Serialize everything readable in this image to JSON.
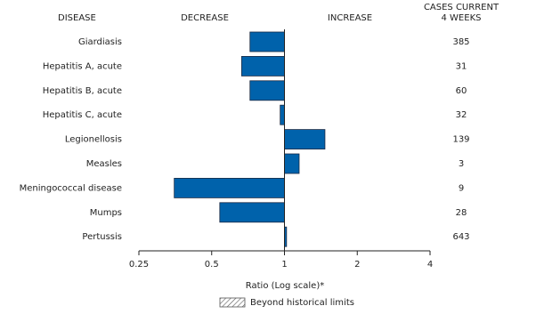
{
  "chart_data": {
    "type": "bar",
    "orientation": "horizontal",
    "log_scale": true,
    "headers": {
      "disease": "DISEASE",
      "decrease": "DECREASE",
      "increase": "INCREASE",
      "cases": [
        "CASES CURRENT",
        "4 WEEKS"
      ]
    },
    "categories": [
      "Giardiasis",
      "Hepatitis A, acute",
      "Hepatitis B, acute",
      "Hepatitis C, acute",
      "Legionellosis",
      "Measles",
      "Meningococcal disease",
      "Mumps",
      "Pertussis"
    ],
    "values": [
      0.72,
      0.665,
      0.72,
      0.96,
      1.47,
      1.15,
      0.35,
      0.54,
      1.02
    ],
    "cases": [
      385,
      31,
      60,
      32,
      139,
      3,
      9,
      28,
      643
    ],
    "color": "#0062ab",
    "xlim": [
      0.25,
      4
    ],
    "xticks": [
      0.25,
      0.5,
      1,
      2,
      4
    ],
    "xlabel": "Ratio (Log scale)*",
    "legend": "Beyond historical limits"
  }
}
